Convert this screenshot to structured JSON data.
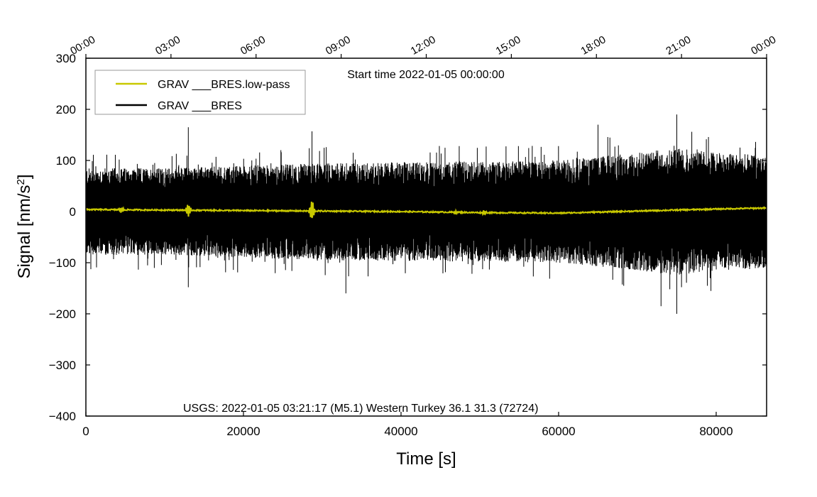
{
  "chart_data": {
    "type": "line",
    "title": "Start time 2022-01-05 00:00:00",
    "xlabel": "Time [s]",
    "ylabel_main": "Signal [nm/s",
    "ylabel_sup": "2",
    "ylabel_end": "]",
    "xlim": [
      0,
      86400
    ],
    "ylim": [
      -400,
      300
    ],
    "x_ticks": [
      0,
      20000,
      40000,
      60000,
      80000
    ],
    "x_tick_labels": [
      "0",
      "20000",
      "40000",
      "60000",
      "80000"
    ],
    "y_ticks": [
      300,
      200,
      100,
      0,
      -100,
      -200,
      -300,
      -400
    ],
    "y_tick_labels": [
      "300",
      "200",
      "100",
      "0",
      "−100",
      "−200",
      "−300",
      "−400"
    ],
    "top_ticks_seconds": [
      0,
      10800,
      21600,
      32400,
      43200,
      54000,
      64800,
      75600,
      86400
    ],
    "top_tick_labels": [
      "00:00",
      "03:00",
      "06:00",
      "09:00",
      "12:00",
      "15:00",
      "18:00",
      "21:00",
      "00:00"
    ],
    "annotation": "USGS: 2022-01-05 03:21:17 (M5.1) Western Turkey 36.1 31.3 (72724)",
    "legend_position": "top-left",
    "series": [
      {
        "name": "GRAV ___BRES.low-pass",
        "color": "#c8c800",
        "style": "line",
        "baseline_points": [
          [
            0,
            4
          ],
          [
            10000,
            3
          ],
          [
            20000,
            2
          ],
          [
            30000,
            1
          ],
          [
            40000,
            0
          ],
          [
            50000,
            -2
          ],
          [
            60000,
            -3
          ],
          [
            70000,
            1
          ],
          [
            80000,
            5
          ],
          [
            86400,
            7
          ]
        ],
        "transients": [
          [
            4500,
            6
          ],
          [
            13000,
            14
          ],
          [
            28700,
            22
          ],
          [
            47000,
            4
          ],
          [
            50500,
            5
          ]
        ]
      },
      {
        "name": "GRAV ___BRES",
        "color": "#000000",
        "style": "dense-noise",
        "envelope_points": [
          [
            0,
            85
          ],
          [
            10000,
            85
          ],
          [
            30000,
            95
          ],
          [
            50000,
            98
          ],
          [
            60000,
            100
          ],
          [
            70000,
            115
          ],
          [
            75000,
            125
          ],
          [
            80000,
            115
          ],
          [
            86400,
            110
          ]
        ],
        "peaks": [
          [
            13000,
            165
          ],
          [
            28700,
            157
          ],
          [
            75000,
            190
          ],
          [
            65000,
            170
          ],
          [
            73000,
            -185
          ],
          [
            75000,
            -200
          ],
          [
            13000,
            -148
          ],
          [
            33000,
            -160
          ]
        ]
      }
    ]
  }
}
